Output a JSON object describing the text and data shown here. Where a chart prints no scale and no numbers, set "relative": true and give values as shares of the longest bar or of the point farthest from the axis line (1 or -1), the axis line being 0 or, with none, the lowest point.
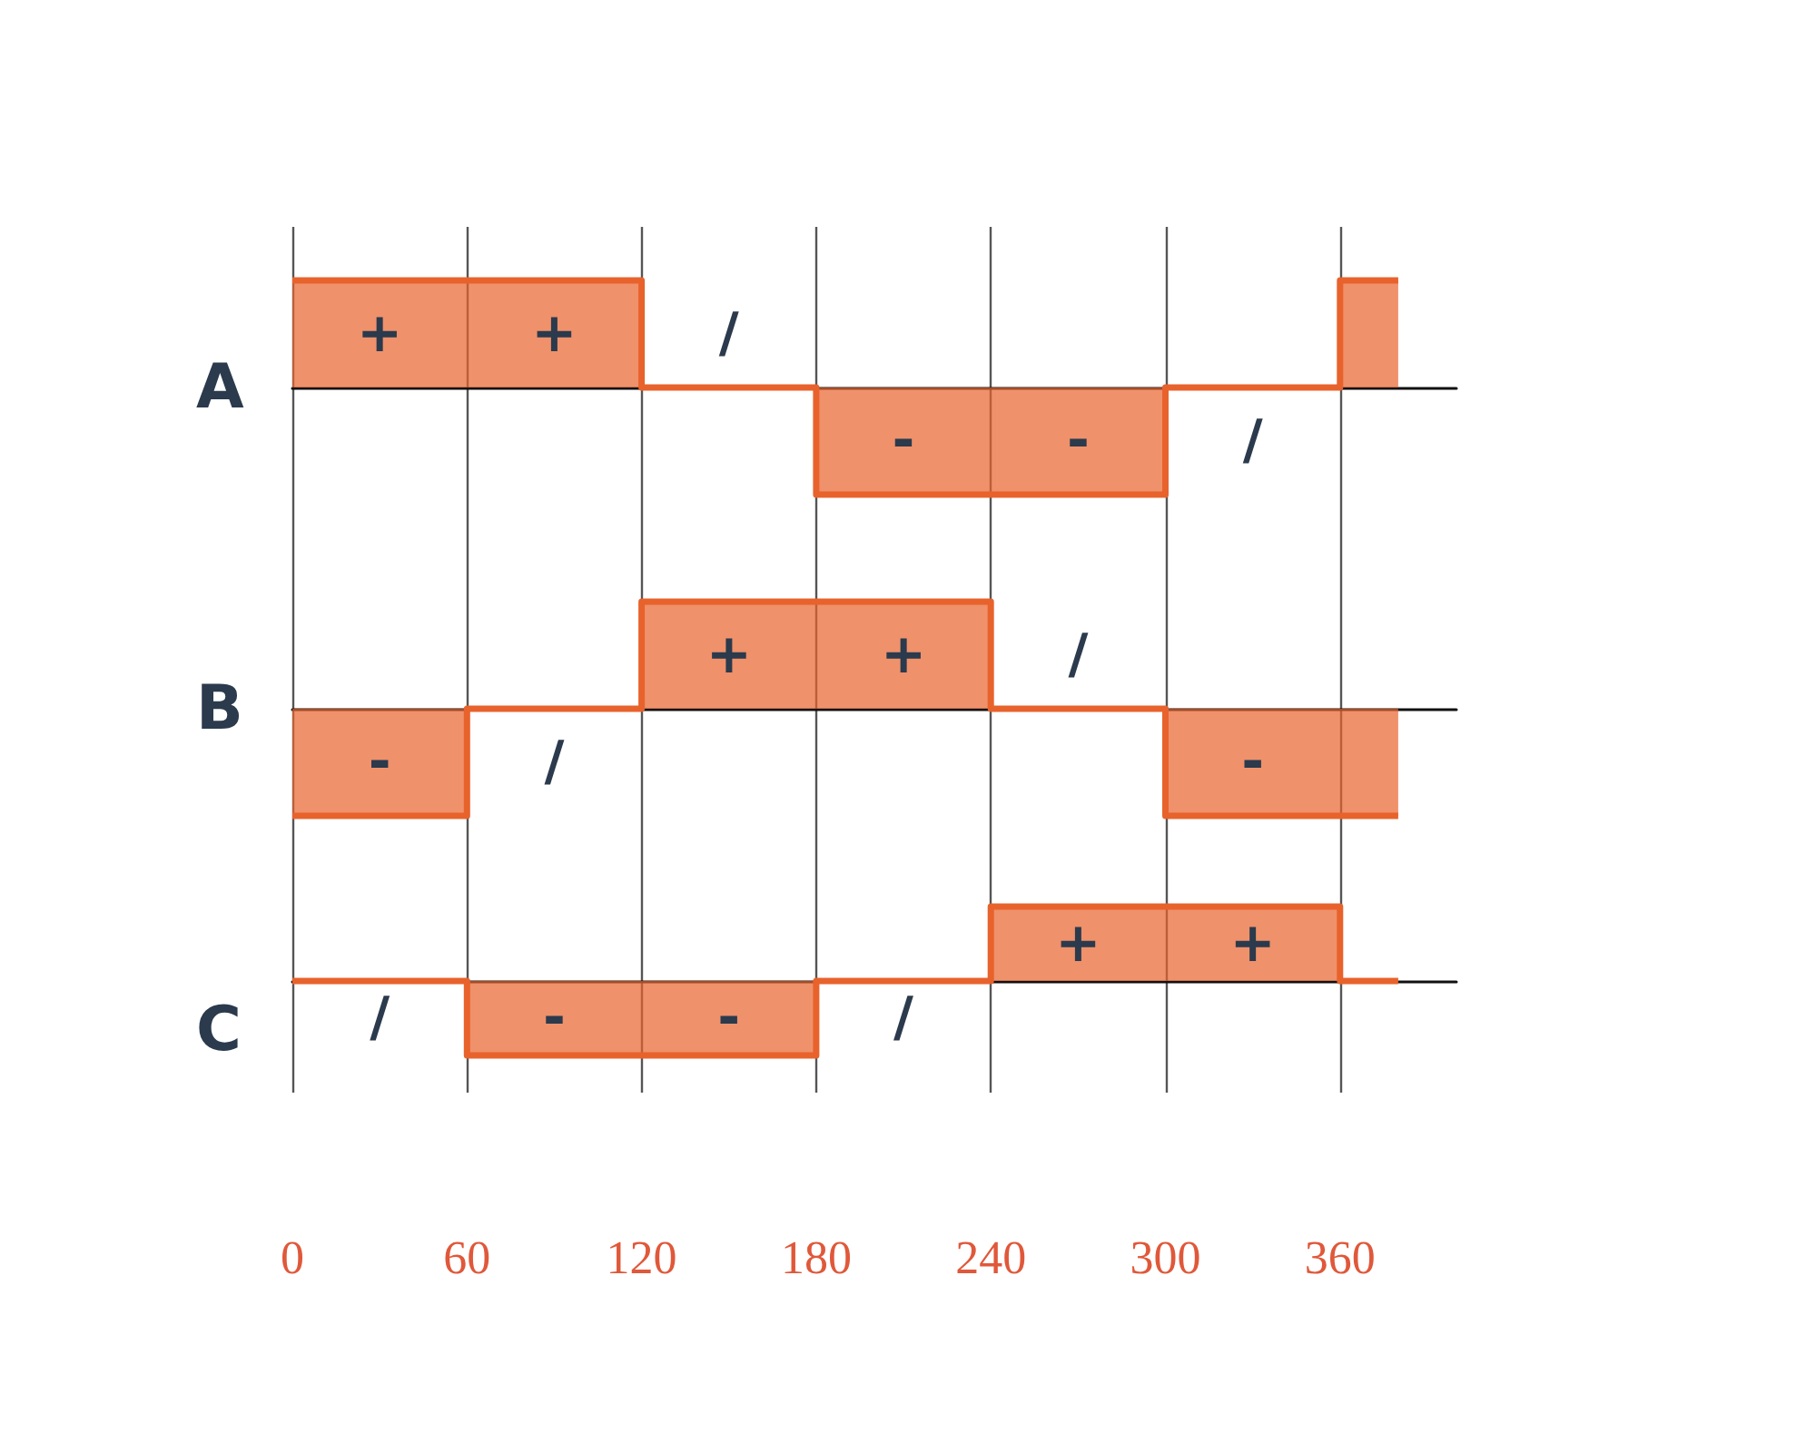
{
  "chart_data": [
    {
      "type": "step",
      "ylabel": "A",
      "relative": true,
      "x": [
        0,
        60,
        120,
        180,
        240,
        300,
        360,
        380
      ],
      "xlim": [
        0,
        400
      ],
      "xticks": [
        0,
        60,
        120,
        180,
        240,
        300,
        360
      ],
      "grid": "x",
      "tick_labels": false,
      "series": [
        {
          "color": "#e8622c",
          "values": [
            1,
            1,
            0,
            -1,
            -1,
            0,
            1,
            1
          ]
        }
      ],
      "annotations": [
        "+",
        "+",
        "/",
        "-",
        "-",
        "/"
      ]
    },
    {
      "type": "step",
      "ylabel": "B",
      "relative": true,
      "x": [
        0,
        60,
        120,
        180,
        240,
        300,
        360,
        380
      ],
      "xlim": [
        0,
        400
      ],
      "xticks": [
        0,
        60,
        120,
        180,
        240,
        300,
        360
      ],
      "grid": "x",
      "tick_labels": false,
      "series": [
        {
          "color": "#e8622c",
          "values": [
            -1,
            0,
            1,
            1,
            0,
            -1,
            -1,
            -1
          ]
        }
      ],
      "annotations": [
        "-",
        "/",
        "+",
        "+",
        "/",
        "-"
      ]
    },
    {
      "type": "step",
      "ylabel": "C",
      "relative": true,
      "x": [
        0,
        60,
        120,
        180,
        240,
        300,
        360,
        380
      ],
      "xlim": [
        0,
        400
      ],
      "xticks": [
        0,
        60,
        120,
        180,
        240,
        300,
        360
      ],
      "grid": "x",
      "tick_labels": "x",
      "series": [
        {
          "color": "#e8622c",
          "values": [
            0,
            -1,
            -1,
            0,
            1,
            1,
            0,
            0
          ]
        }
      ],
      "annotations": [
        "/",
        "-",
        "-",
        "/",
        "+",
        "+"
      ]
    }
  ]
}
